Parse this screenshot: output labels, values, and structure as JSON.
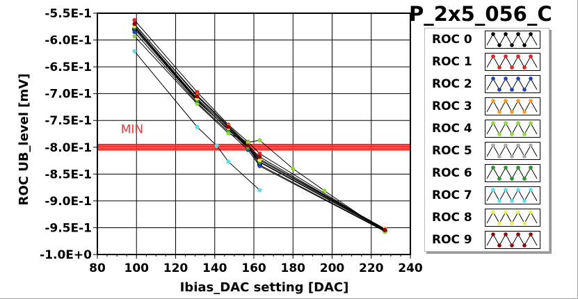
{
  "chart_data": {
    "type": "line",
    "title": "P_2x5_056_C",
    "xlabel": "Ibias_DAC setting [DAC]",
    "ylabel": "ROC UB_level [mV]",
    "xlim": [
      80,
      240
    ],
    "ylim": [
      -1000,
      -550
    ],
    "x_ticks": [
      "80",
      "100",
      "120",
      "140",
      "160",
      "180",
      "200",
      "220",
      "240"
    ],
    "y_ticks": [
      "-5.5E-1",
      "-6.0E-1",
      "-6.5E-1",
      "-7.0E-1",
      "-7.5E-1",
      "-8.0E-1",
      "-8.5E-1",
      "-9.0E-1",
      "-9.5E-1",
      "-1.0E+0"
    ],
    "grid": true,
    "legend_position": "right",
    "annotation": {
      "text": "MIN",
      "color": "#ff3030"
    },
    "min_lines": [
      {
        "y": -795,
        "color": "#ff1a1a"
      },
      {
        "y": -798,
        "color": "#ff2a2a"
      },
      {
        "y": -800,
        "color": "#ff3333"
      },
      {
        "y": -803,
        "color": "#ff2020"
      },
      {
        "y": -805,
        "color": "#ff3a3a"
      }
    ],
    "series": [
      {
        "name": "ROC 0",
        "color": "#000000",
        "x": [
          99,
          131,
          147,
          157,
          163,
          227
        ],
        "y": [
          -580,
          -714,
          -766,
          -800,
          -833,
          -956
        ]
      },
      {
        "name": "ROC 1",
        "color": "#e82020",
        "x": [
          99,
          131,
          147,
          157,
          163,
          227
        ],
        "y": [
          -563,
          -697,
          -758,
          -790,
          -812,
          -955
        ]
      },
      {
        "name": "ROC 2",
        "color": "#1a3fd0",
        "x": [
          99,
          131,
          147,
          157,
          163,
          227
        ],
        "y": [
          -585,
          -717,
          -771,
          -805,
          -835,
          -957
        ]
      },
      {
        "name": "ROC 3",
        "color": "#ff9a1a",
        "x": [
          99,
          131,
          147,
          157,
          163,
          227
        ],
        "y": [
          -571,
          -703,
          -760,
          -795,
          -822,
          -952
        ]
      },
      {
        "name": "ROC 4",
        "color": "#88dd33",
        "x": [
          99,
          131,
          147,
          157,
          163,
          180,
          196,
          227
        ],
        "y": [
          -593,
          -719,
          -774,
          -791,
          -787,
          -840,
          -881,
          -958
        ]
      },
      {
        "name": "ROC 5",
        "color": "#aaaaaa",
        "x": [
          99,
          131,
          147,
          157,
          163,
          227
        ],
        "y": [
          -576,
          -711,
          -768,
          -799,
          -827,
          -954
        ]
      },
      {
        "name": "ROC 6",
        "color": "#229922",
        "x": [
          99,
          131,
          147,
          157,
          163,
          227
        ],
        "y": [
          -577,
          -713,
          -767,
          -802,
          -828,
          -955
        ]
      },
      {
        "name": "ROC 7",
        "color": "#55e0f0",
        "x": [
          99,
          131,
          141,
          147,
          163
        ],
        "y": [
          -621,
          -762,
          -797,
          -827,
          -880
        ]
      },
      {
        "name": "ROC 8",
        "color": "#e6f04a",
        "x": [
          99,
          131,
          147,
          157,
          163,
          227
        ],
        "y": [
          -574,
          -709,
          -764,
          -798,
          -824,
          -953
        ]
      },
      {
        "name": "ROC 9",
        "color": "#990000",
        "x": [
          99,
          131,
          147,
          157,
          163,
          227
        ],
        "y": [
          -570,
          -705,
          -762,
          -797,
          -818,
          -954
        ]
      }
    ]
  }
}
